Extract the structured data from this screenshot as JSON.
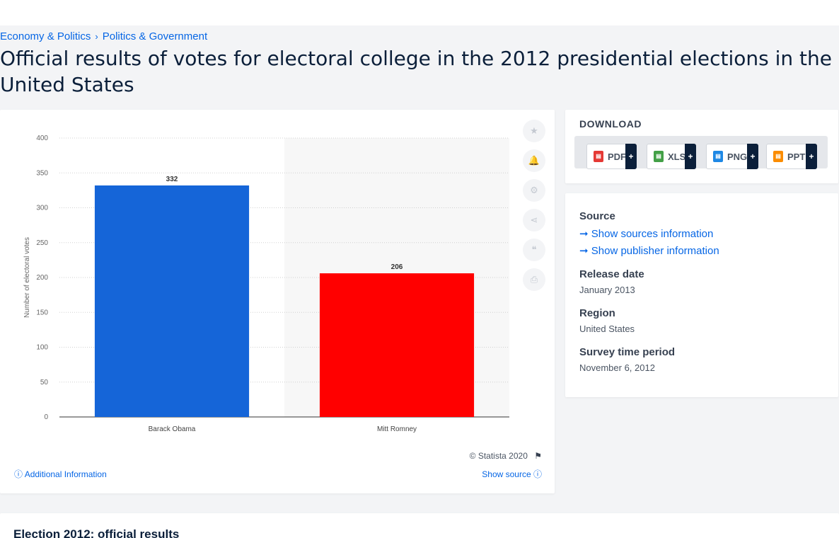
{
  "breadcrumb": [
    "Economy & Politics",
    "Politics & Government"
  ],
  "page_title": "Official results of votes for electoral college in the 2012 presidential elections in the United States",
  "colors": {
    "accent": "#0666e5",
    "obama": "#1565d8",
    "romney": "#ff0000"
  },
  "download": {
    "heading": "DOWNLOAD",
    "buttons": [
      {
        "label": "PDF",
        "icon": "pdf-file-icon"
      },
      {
        "label": "XLS",
        "icon": "xls-file-icon"
      },
      {
        "label": "PNG",
        "icon": "png-file-icon"
      },
      {
        "label": "PPT",
        "icon": "ppt-file-icon"
      }
    ],
    "plus": "+"
  },
  "info": {
    "source_label": "Source",
    "show_sources": "Show sources information",
    "show_publisher": "Show publisher information",
    "release_label": "Release date",
    "release_value": "January 2013",
    "region_label": "Region",
    "region_value": "United States",
    "survey_label": "Survey time period",
    "survey_value": "November 6, 2012"
  },
  "tools": [
    "star-icon",
    "bell-icon",
    "gear-icon",
    "share-icon",
    "quote-icon",
    "print-icon"
  ],
  "footer": {
    "copyright": "© Statista 2020",
    "additional": "Additional Information",
    "show_source": "Show source"
  },
  "bottom_heading": "Election 2012: official results",
  "chart_data": {
    "type": "bar",
    "categories": [
      "Barack Obama",
      "Mitt Romney"
    ],
    "values": [
      332,
      206
    ],
    "ylabel": "Number of electoral votes",
    "ylim": [
      0,
      400
    ],
    "yticks": [
      0,
      50,
      100,
      150,
      200,
      250,
      300,
      350,
      400
    ],
    "bar_colors": [
      "#1565d8",
      "#ff0000"
    ],
    "grid": true
  }
}
